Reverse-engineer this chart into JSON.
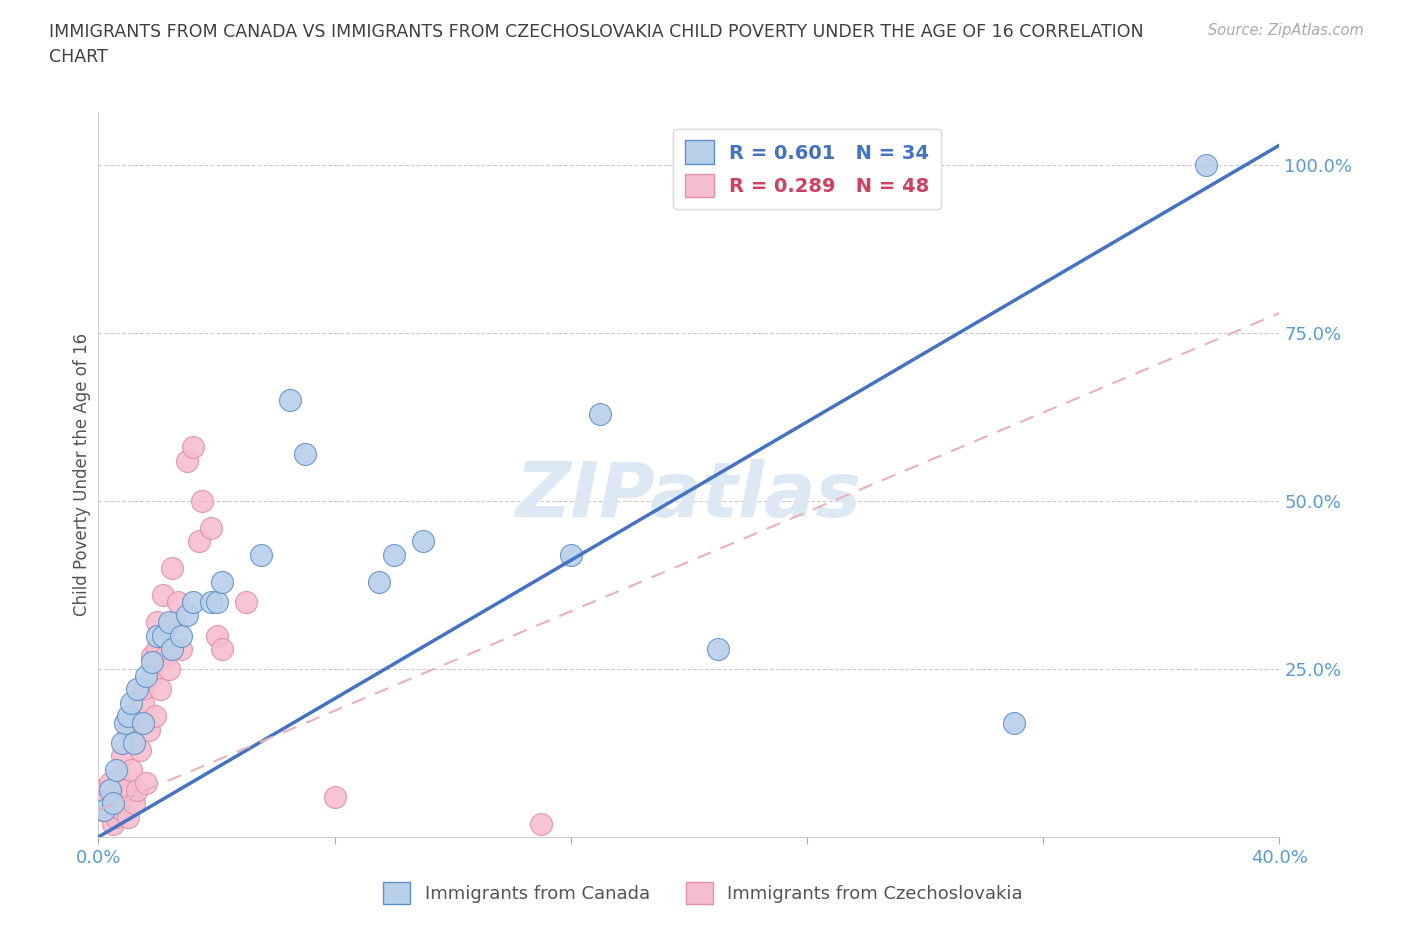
{
  "title_line1": "IMMIGRANTS FROM CANADA VS IMMIGRANTS FROM CZECHOSLOVAKIA CHILD POVERTY UNDER THE AGE OF 16 CORRELATION",
  "title_line2": "CHART",
  "source_text": "Source: ZipAtlas.com",
  "ylabel": "Child Poverty Under the Age of 16",
  "xlim": [
    0.0,
    0.4
  ],
  "ylim": [
    0.0,
    1.08
  ],
  "legend_canada": "Immigrants from Canada",
  "legend_czech": "Immigrants from Czechoslovakia",
  "R_canada": "0.601",
  "N_canada": "34",
  "R_czech": "0.289",
  "N_czech": "48",
  "blue_scatter_color": "#b8d0ea",
  "pink_scatter_color": "#f5bece",
  "blue_edge_color": "#6090c8",
  "pink_edge_color": "#e090a8",
  "blue_line_color": "#4472c4",
  "pink_line_color": "#e8b0c0",
  "axis_tick_color": "#5b9bd5",
  "grid_color": "#cccccc",
  "title_color": "#404040",
  "watermark_color": "#dce8f4",
  "canada_x": [
    0.002,
    0.004,
    0.005,
    0.006,
    0.008,
    0.009,
    0.01,
    0.011,
    0.012,
    0.013,
    0.015,
    0.016,
    0.018,
    0.02,
    0.022,
    0.024,
    0.025,
    0.028,
    0.03,
    0.032,
    0.038,
    0.04,
    0.042,
    0.055,
    0.065,
    0.07,
    0.095,
    0.1,
    0.11,
    0.16,
    0.17,
    0.21,
    0.31,
    0.375
  ],
  "canada_y": [
    0.04,
    0.07,
    0.05,
    0.1,
    0.14,
    0.17,
    0.18,
    0.2,
    0.14,
    0.22,
    0.17,
    0.24,
    0.26,
    0.3,
    0.3,
    0.32,
    0.28,
    0.3,
    0.33,
    0.35,
    0.35,
    0.35,
    0.38,
    0.42,
    0.65,
    0.57,
    0.38,
    0.42,
    0.44,
    0.42,
    0.63,
    0.28,
    0.17,
    1.0
  ],
  "czech_x": [
    0.001,
    0.001,
    0.002,
    0.003,
    0.004,
    0.005,
    0.005,
    0.006,
    0.007,
    0.007,
    0.008,
    0.008,
    0.009,
    0.01,
    0.01,
    0.011,
    0.012,
    0.012,
    0.013,
    0.014,
    0.015,
    0.015,
    0.016,
    0.017,
    0.018,
    0.018,
    0.019,
    0.02,
    0.02,
    0.021,
    0.022,
    0.022,
    0.023,
    0.024,
    0.025,
    0.026,
    0.027,
    0.028,
    0.03,
    0.032,
    0.034,
    0.035,
    0.038,
    0.04,
    0.042,
    0.05,
    0.08,
    0.15
  ],
  "czech_y": [
    0.04,
    0.07,
    0.05,
    0.04,
    0.08,
    0.02,
    0.06,
    0.03,
    0.05,
    0.09,
    0.04,
    0.12,
    0.07,
    0.03,
    0.16,
    0.1,
    0.05,
    0.18,
    0.07,
    0.13,
    0.2,
    0.22,
    0.08,
    0.16,
    0.24,
    0.27,
    0.18,
    0.28,
    0.32,
    0.22,
    0.3,
    0.36,
    0.27,
    0.25,
    0.4,
    0.32,
    0.35,
    0.28,
    0.56,
    0.58,
    0.44,
    0.5,
    0.46,
    0.3,
    0.28,
    0.35,
    0.06,
    0.02
  ],
  "blue_line_x0": 0.0,
  "blue_line_y0": 0.0,
  "blue_line_x1": 0.4,
  "blue_line_y1": 1.03,
  "pink_line_x0": 0.0,
  "pink_line_y0": 0.04,
  "pink_line_x1": 0.4,
  "pink_line_y1": 0.78
}
